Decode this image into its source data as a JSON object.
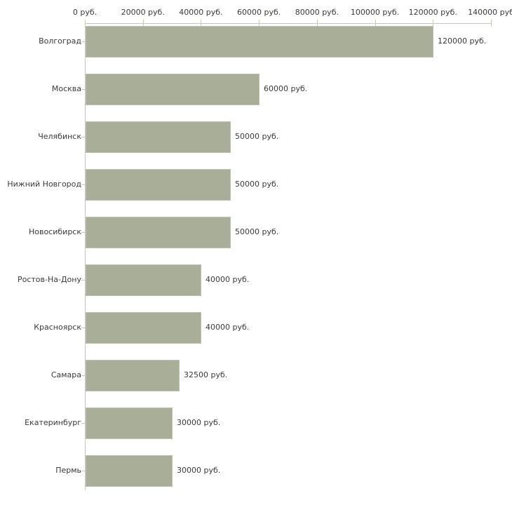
{
  "chart_data": {
    "type": "bar",
    "orientation": "horizontal",
    "title": "",
    "xlabel": "",
    "ylabel": "",
    "legend": false,
    "grid": false,
    "categories": [
      "Волгоград",
      "Москва",
      "Челябинск",
      "Нижний Новгород",
      "Новосибирск",
      "Ростов-На-Дону",
      "Красноярск",
      "Самара",
      "Екатеринбург",
      "Пермь"
    ],
    "values": [
      120000,
      60000,
      50000,
      50000,
      50000,
      40000,
      40000,
      32500,
      30000,
      30000
    ],
    "value_labels": [
      "120000 руб.",
      "60000 руб.",
      "50000 руб.",
      "50000 руб.",
      "50000 руб.",
      "40000 руб.",
      "40000 руб.",
      "32500 руб.",
      "30000 руб.",
      "30000 руб."
    ],
    "x_axis": {
      "position": "top",
      "min": 0,
      "max": 140000,
      "ticks": [
        0,
        20000,
        40000,
        60000,
        80000,
        100000,
        120000,
        140000
      ],
      "tick_labels": [
        "0 руб.",
        "20000 руб.",
        "40000 руб.",
        "60000 руб.",
        "80000 руб.",
        "100000 руб.",
        "120000 руб.",
        "140000 руб"
      ]
    },
    "colors": {
      "bar_fill": "#a8ae98",
      "bar_border": "#bcc2ae",
      "axis_line": "#c6c6c6",
      "tick_mark": "#c9cda3",
      "text": "#3a3a3a",
      "background": "#ffffff"
    }
  }
}
